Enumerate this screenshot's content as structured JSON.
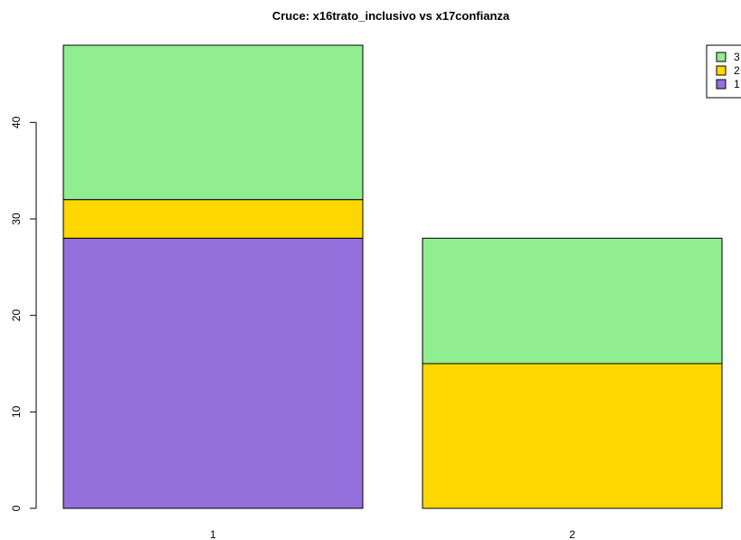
{
  "chart_data": {
    "type": "bar",
    "stacked": true,
    "title": "Cruce: x16trato_inclusivo vs x17confianza",
    "xlabel": "",
    "ylabel": "",
    "categories": [
      "1",
      "2"
    ],
    "series": [
      {
        "name": "1",
        "color": "#9370DB",
        "values": [
          28,
          0
        ]
      },
      {
        "name": "2",
        "color": "#FFD700",
        "values": [
          4,
          15
        ]
      },
      {
        "name": "3",
        "color": "#90EE90",
        "values": [
          16,
          13
        ]
      }
    ],
    "ylim": [
      0,
      48
    ],
    "yticks": [
      0,
      10,
      20,
      30,
      40
    ],
    "grid": false,
    "legend": {
      "placement": "top-right",
      "order": [
        "3",
        "2",
        "1"
      ]
    }
  }
}
